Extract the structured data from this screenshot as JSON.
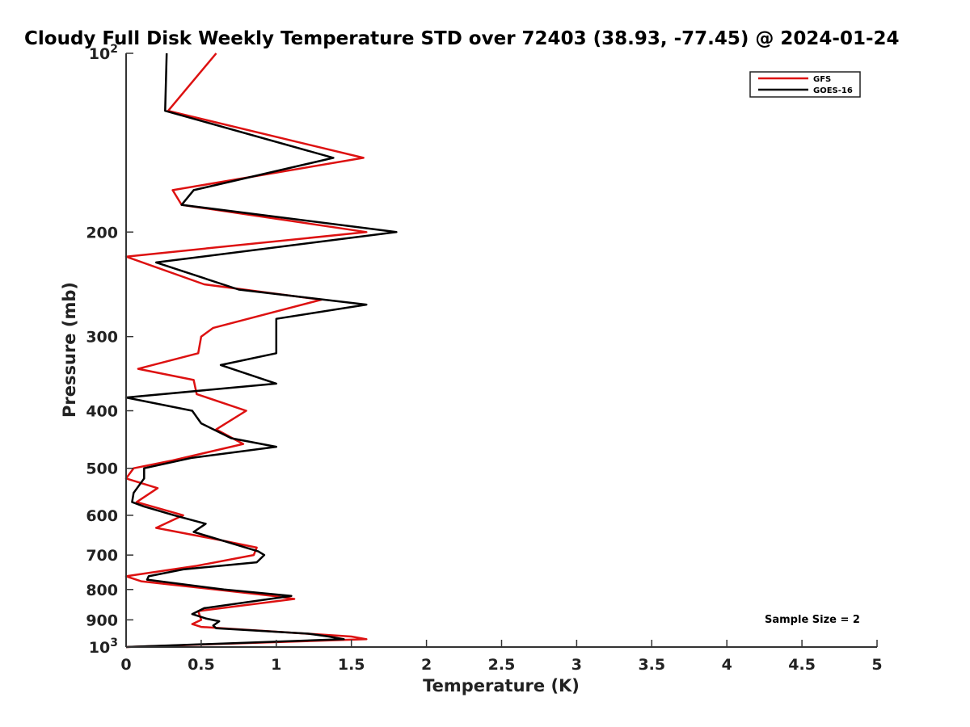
{
  "chart_data": {
    "type": "line",
    "title": "Cloudy Full Disk Weekly Temperature STD over 72403 (38.93, -77.45) @ 2024-01-24",
    "xlabel": "Temperature (K)",
    "ylabel": "Pressure (mb)",
    "xlim": [
      0,
      5
    ],
    "ylim": [
      100,
      1000
    ],
    "yscale": "log",
    "y_reversed": true,
    "grid": false,
    "legend_position": "top-right",
    "x_ticks": [
      "0",
      "0.5",
      "1",
      "1.5",
      "2",
      "2.5",
      "3",
      "3.5",
      "4",
      "4.5",
      "5"
    ],
    "y_ticks": [
      {
        "value": 100,
        "label": "10",
        "exp": "2"
      },
      {
        "value": 200,
        "label": "200",
        "exp": ""
      },
      {
        "value": 300,
        "label": "300",
        "exp": ""
      },
      {
        "value": 400,
        "label": "400",
        "exp": ""
      },
      {
        "value": 500,
        "label": "500",
        "exp": ""
      },
      {
        "value": 600,
        "label": "600",
        "exp": ""
      },
      {
        "value": 700,
        "label": "700",
        "exp": ""
      },
      {
        "value": 800,
        "label": "800",
        "exp": ""
      },
      {
        "value": 900,
        "label": "900",
        "exp": ""
      },
      {
        "value": 1000,
        "label": "10",
        "exp": "3"
      }
    ],
    "annotation": "Sample Size = 2",
    "series": [
      {
        "name": "GFS",
        "color": "#dd1111",
        "points": [
          [
            0.6,
            100
          ],
          [
            0.28,
            125
          ],
          [
            1.58,
            150
          ],
          [
            0.31,
            170
          ],
          [
            0.37,
            180
          ],
          [
            1.6,
            200
          ],
          [
            0.0,
            220
          ],
          [
            0.52,
            245
          ],
          [
            1.3,
            260
          ],
          [
            0.58,
            290
          ],
          [
            0.5,
            300
          ],
          [
            0.48,
            320
          ],
          [
            0.08,
            340
          ],
          [
            0.45,
            355
          ],
          [
            0.47,
            375
          ],
          [
            0.8,
            400
          ],
          [
            0.6,
            430
          ],
          [
            0.78,
            455
          ],
          [
            0.31,
            485
          ],
          [
            0.05,
            500
          ],
          [
            0.0,
            520
          ],
          [
            0.21,
            540
          ],
          [
            0.07,
            570
          ],
          [
            0.38,
            600
          ],
          [
            0.2,
            630
          ],
          [
            0.62,
            660
          ],
          [
            0.87,
            680
          ],
          [
            0.85,
            700
          ],
          [
            0.47,
            730
          ],
          [
            0.0,
            760
          ],
          [
            0.1,
            775
          ],
          [
            0.98,
            820
          ],
          [
            1.12,
            830
          ],
          [
            0.48,
            870
          ],
          [
            0.5,
            900
          ],
          [
            0.44,
            915
          ],
          [
            0.5,
            925
          ],
          [
            1.5,
            960
          ],
          [
            1.6,
            970
          ],
          [
            0.0,
            1000
          ]
        ]
      },
      {
        "name": "GOES-16",
        "color": "#000000",
        "points": [
          [
            0.27,
            100
          ],
          [
            0.26,
            125
          ],
          [
            1.38,
            150
          ],
          [
            0.45,
            170
          ],
          [
            0.37,
            180
          ],
          [
            1.8,
            200
          ],
          [
            0.2,
            225
          ],
          [
            0.75,
            250
          ],
          [
            1.6,
            265
          ],
          [
            1.0,
            280
          ],
          [
            1.0,
            300
          ],
          [
            1.0,
            320
          ],
          [
            0.63,
            335
          ],
          [
            1.0,
            360
          ],
          [
            0.0,
            380
          ],
          [
            0.44,
            400
          ],
          [
            0.5,
            420
          ],
          [
            0.7,
            445
          ],
          [
            1.0,
            460
          ],
          [
            0.44,
            480
          ],
          [
            0.12,
            500
          ],
          [
            0.12,
            520
          ],
          [
            0.05,
            550
          ],
          [
            0.04,
            570
          ],
          [
            0.12,
            580
          ],
          [
            0.32,
            600
          ],
          [
            0.53,
            620
          ],
          [
            0.45,
            640
          ],
          [
            0.88,
            690
          ],
          [
            0.92,
            700
          ],
          [
            0.87,
            720
          ],
          [
            0.38,
            740
          ],
          [
            0.15,
            760
          ],
          [
            0.14,
            770
          ],
          [
            0.65,
            800
          ],
          [
            1.1,
            820
          ],
          [
            0.52,
            860
          ],
          [
            0.44,
            880
          ],
          [
            0.53,
            895
          ],
          [
            0.62,
            905
          ],
          [
            0.58,
            920
          ],
          [
            0.6,
            930
          ],
          [
            1.22,
            950
          ],
          [
            1.35,
            960
          ],
          [
            1.45,
            970
          ],
          [
            0.0,
            1000
          ]
        ]
      }
    ]
  }
}
